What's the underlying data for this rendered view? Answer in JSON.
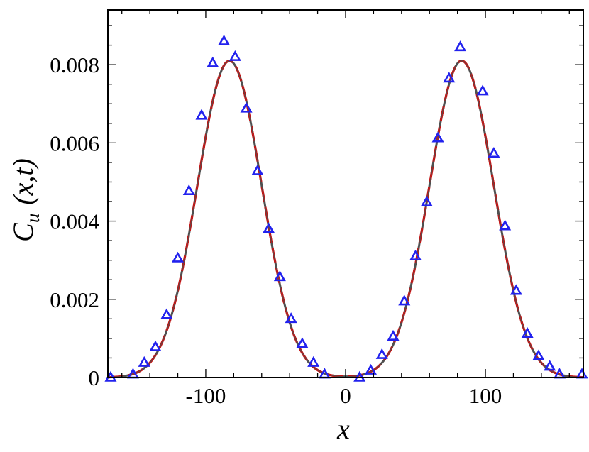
{
  "chart_data": {
    "type": "line",
    "xlabel": "x",
    "ylabel": {
      "main": "C",
      "sub": "u",
      "args": "(x,t)"
    },
    "xlim": [
      -170,
      170
    ],
    "ylim": [
      0,
      0.0094
    ],
    "x_ticks": [
      -100,
      0,
      100
    ],
    "x_tick_labels": [
      "-100",
      "0",
      "100"
    ],
    "x_minor_step": 20,
    "y_ticks": [
      0,
      0.002,
      0.004,
      0.006,
      0.008
    ],
    "y_tick_labels": [
      "0",
      "0.002",
      "0.004",
      "0.006",
      "0.008"
    ],
    "y_minor_step": 0.0005,
    "grid": false,
    "legend": "none",
    "series": [
      {
        "style": "solid",
        "color": "#505050",
        "peak_height": 0.0081,
        "peak_centers": [
          -83,
          83
        ],
        "peak_sigma": 23
      },
      {
        "style": "dashed",
        "color": "#cc1111",
        "peak_height": 0.0081,
        "peak_centers": [
          -83,
          83
        ],
        "peak_sigma": 23
      },
      {
        "style": "triangle-markers",
        "color": "#2222ee",
        "points": [
          [
            -168,
            0.0
          ],
          [
            -152,
            8e-05
          ],
          [
            -144,
            0.00038
          ],
          [
            -136,
            0.00078
          ],
          [
            -128,
            0.0016
          ],
          [
            -120,
            0.00305
          ],
          [
            -112,
            0.00477
          ],
          [
            -103,
            0.0067
          ],
          [
            -95,
            0.00804
          ],
          [
            -87,
            0.0086
          ],
          [
            -79,
            0.0082
          ],
          [
            -71,
            0.00688
          ],
          [
            -63,
            0.00528
          ],
          [
            -55,
            0.0038
          ],
          [
            -47,
            0.00257
          ],
          [
            -39,
            0.0015
          ],
          [
            -31,
            0.00086
          ],
          [
            -23,
            0.00038
          ],
          [
            -15,
            8e-05
          ],
          [
            10,
            0.0
          ],
          [
            18,
            0.00018
          ],
          [
            26,
            0.00058
          ],
          [
            34,
            0.00105
          ],
          [
            42,
            0.00195
          ],
          [
            50,
            0.0031
          ],
          [
            58,
            0.00448
          ],
          [
            66,
            0.00612
          ],
          [
            74,
            0.00765
          ],
          [
            82,
            0.00845
          ],
          [
            98,
            0.00732
          ],
          [
            106,
            0.00573
          ],
          [
            114,
            0.00387
          ],
          [
            122,
            0.00222
          ],
          [
            130,
            0.00112
          ],
          [
            138,
            0.00055
          ],
          [
            146,
            0.00028
          ],
          [
            153,
            8e-05
          ],
          [
            169,
            8e-05
          ]
        ]
      }
    ]
  }
}
